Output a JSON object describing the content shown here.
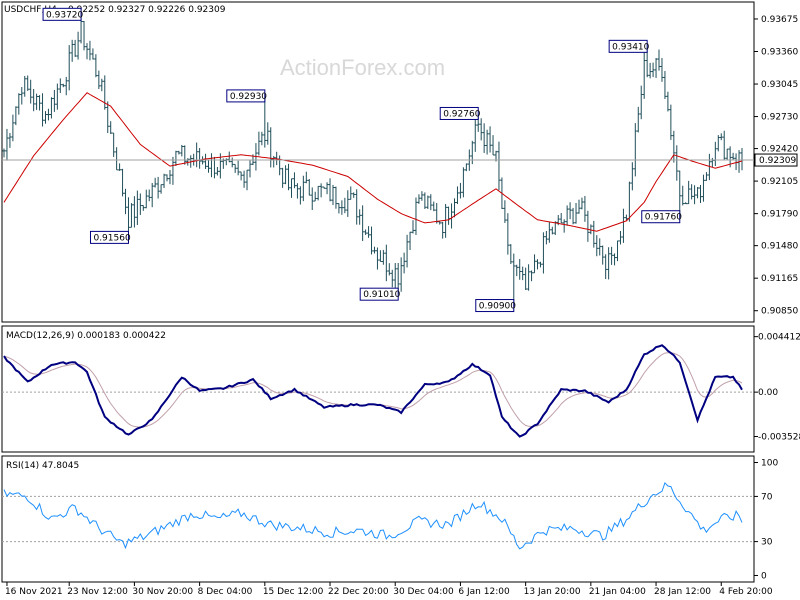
{
  "window_title": "USDCHF,H4",
  "chart_data": [
    {
      "type": "bar",
      "name": "price-panel",
      "symbol": "USDCHF,H4",
      "ohlc_readout": "0.92252 0.92327 0.92226 0.92309",
      "ylim": [
        0.9076,
        0.9382
      ],
      "y_ticks": [
        "0.93675",
        "0.93360",
        "0.93045",
        "0.92730",
        "0.92420",
        "0.92105",
        "0.91790",
        "0.91480",
        "0.91165",
        "0.90850"
      ],
      "y_tick_values": [
        0.93675,
        0.9336,
        0.93045,
        0.9273,
        0.9242,
        0.92105,
        0.9179,
        0.9148,
        0.91165,
        0.9085
      ],
      "current_price_label": "0.92309",
      "current_price": 0.92309,
      "annotations": [
        {
          "label": "0.93720",
          "value": 0.9372,
          "bar": 26
        },
        {
          "label": "0.92930",
          "value": 0.9293,
          "bar": 88
        },
        {
          "label": "0.91560",
          "value": 0.9156,
          "bar": 42
        },
        {
          "label": "0.91010",
          "value": 0.9101,
          "bar": 133
        },
        {
          "label": "0.92760",
          "value": 0.9276,
          "bar": 160
        },
        {
          "label": "0.90900",
          "value": 0.909,
          "bar": 172
        },
        {
          "label": "0.93410",
          "value": 0.9341,
          "bar": 217
        },
        {
          "label": "0.91760",
          "value": 0.9176,
          "bar": 228
        }
      ],
      "close_anchors": [
        [
          0,
          0.924
        ],
        [
          6,
          0.9305
        ],
        [
          14,
          0.9275
        ],
        [
          20,
          0.931
        ],
        [
          26,
          0.9355
        ],
        [
          32,
          0.931
        ],
        [
          42,
          0.9175
        ],
        [
          50,
          0.92
        ],
        [
          58,
          0.9235
        ],
        [
          68,
          0.923
        ],
        [
          80,
          0.9215
        ],
        [
          88,
          0.9255
        ],
        [
          96,
          0.9205
        ],
        [
          108,
          0.92
        ],
        [
          118,
          0.919
        ],
        [
          126,
          0.914
        ],
        [
          133,
          0.912
        ],
        [
          140,
          0.9195
        ],
        [
          148,
          0.917
        ],
        [
          154,
          0.921
        ],
        [
          160,
          0.9265
        ],
        [
          166,
          0.923
        ],
        [
          170,
          0.914
        ],
        [
          176,
          0.9105
        ],
        [
          184,
          0.916
        ],
        [
          194,
          0.9185
        ],
        [
          204,
          0.913
        ],
        [
          210,
          0.918
        ],
        [
          216,
          0.932
        ],
        [
          222,
          0.932
        ],
        [
          228,
          0.92
        ],
        [
          234,
          0.9195
        ],
        [
          240,
          0.925
        ],
        [
          246,
          0.9236
        ],
        [
          249,
          0.9231
        ]
      ],
      "ma_anchors": [
        [
          0,
          0.919
        ],
        [
          10,
          0.9235
        ],
        [
          20,
          0.927
        ],
        [
          28,
          0.9296
        ],
        [
          36,
          0.9283
        ],
        [
          46,
          0.9246
        ],
        [
          56,
          0.9225
        ],
        [
          68,
          0.9232
        ],
        [
          80,
          0.9236
        ],
        [
          92,
          0.9232
        ],
        [
          104,
          0.9226
        ],
        [
          116,
          0.9215
        ],
        [
          126,
          0.9193
        ],
        [
          134,
          0.9179
        ],
        [
          142,
          0.917
        ],
        [
          150,
          0.9173
        ],
        [
          160,
          0.9192
        ],
        [
          166,
          0.9203
        ],
        [
          172,
          0.919
        ],
        [
          180,
          0.9173
        ],
        [
          190,
          0.9168
        ],
        [
          200,
          0.9162
        ],
        [
          210,
          0.9172
        ],
        [
          216,
          0.919
        ],
        [
          220,
          0.921
        ],
        [
          226,
          0.9236
        ],
        [
          232,
          0.923
        ],
        [
          240,
          0.9223
        ],
        [
          249,
          0.923
        ]
      ]
    },
    {
      "type": "line",
      "name": "macd-panel",
      "label": "MACD(12,26,9) 0.000183 0.000422",
      "ylim": [
        -0.0046,
        0.0051
      ],
      "y_ticks": [
        "0.004412",
        "0.00",
        "-0.003528"
      ],
      "y_tick_values": [
        0.004412,
        0.0,
        -0.003528
      ],
      "macd_anchors": [
        [
          0,
          0.0028
        ],
        [
          8,
          0.0008
        ],
        [
          16,
          0.0022
        ],
        [
          24,
          0.0024
        ],
        [
          28,
          0.0016
        ],
        [
          34,
          -0.002
        ],
        [
          42,
          -0.0034
        ],
        [
          50,
          -0.0022
        ],
        [
          60,
          0.0012
        ],
        [
          66,
          0.0001
        ],
        [
          74,
          0.0003
        ],
        [
          84,
          0.001
        ],
        [
          90,
          -0.0005
        ],
        [
          98,
          0.0002
        ],
        [
          108,
          -0.0012
        ],
        [
          118,
          -0.001
        ],
        [
          126,
          -0.001
        ],
        [
          134,
          -0.0016
        ],
        [
          142,
          0.0006
        ],
        [
          150,
          0.0008
        ],
        [
          158,
          0.0022
        ],
        [
          164,
          0.0014
        ],
        [
          168,
          -0.002
        ],
        [
          174,
          -0.0036
        ],
        [
          180,
          -0.0025
        ],
        [
          188,
          0.0002
        ],
        [
          196,
          0.0001
        ],
        [
          204,
          -0.0008
        ],
        [
          210,
          0.0002
        ],
        [
          216,
          0.003
        ],
        [
          222,
          0.0038
        ],
        [
          228,
          0.0024
        ],
        [
          234,
          -0.0022
        ],
        [
          240,
          0.0012
        ],
        [
          246,
          0.0012
        ],
        [
          249,
          0.0002
        ]
      ]
    },
    {
      "type": "line",
      "name": "rsi-panel",
      "label": "RSI(14) 47.8045",
      "ylim": [
        -4,
        104
      ],
      "y_ticks": [
        "100",
        "70",
        "30",
        "0"
      ],
      "y_tick_values": [
        100,
        70,
        30,
        0
      ],
      "levels": [
        70,
        30
      ],
      "rsi_anchors": [
        [
          0,
          72
        ],
        [
          8,
          70
        ],
        [
          16,
          50
        ],
        [
          24,
          60
        ],
        [
          32,
          42
        ],
        [
          40,
          28
        ],
        [
          48,
          35
        ],
        [
          56,
          45
        ],
        [
          64,
          55
        ],
        [
          72,
          50
        ],
        [
          80,
          55
        ],
        [
          90,
          45
        ],
        [
          100,
          42
        ],
        [
          110,
          38
        ],
        [
          120,
          40
        ],
        [
          130,
          35
        ],
        [
          140,
          48
        ],
        [
          150,
          45
        ],
        [
          160,
          65
        ],
        [
          168,
          50
        ],
        [
          174,
          25
        ],
        [
          182,
          40
        ],
        [
          192,
          42
        ],
        [
          202,
          35
        ],
        [
          210,
          50
        ],
        [
          218,
          70
        ],
        [
          224,
          80
        ],
        [
          230,
          60
        ],
        [
          236,
          40
        ],
        [
          242,
          50
        ],
        [
          248,
          53
        ],
        [
          249,
          48
        ]
      ]
    }
  ],
  "x_axis": {
    "labels": [
      "16 Nov 2021",
      "23 Nov 12:00",
      "30 Nov 20:00",
      "8 Dec 04:00",
      "15 Dec 12:00",
      "22 Dec 20:00",
      "30 Dec 04:00",
      "6 Jan 12:00",
      "13 Jan 20:00",
      "21 Jan 04:00",
      "28 Jan 12:00",
      "4 Feb 20:00"
    ],
    "label_bars": [
      1,
      22,
      44,
      66,
      88,
      110,
      132,
      154,
      176,
      198,
      220,
      242
    ]
  },
  "watermark": "ActionForex.com",
  "colors": {
    "bars": "#1f4e5a",
    "ma": "#cc0000",
    "macd": "#000080",
    "signal": "#c0a0a8",
    "grid": "#a0a0a0",
    "price_line": "#a0a0a0"
  }
}
